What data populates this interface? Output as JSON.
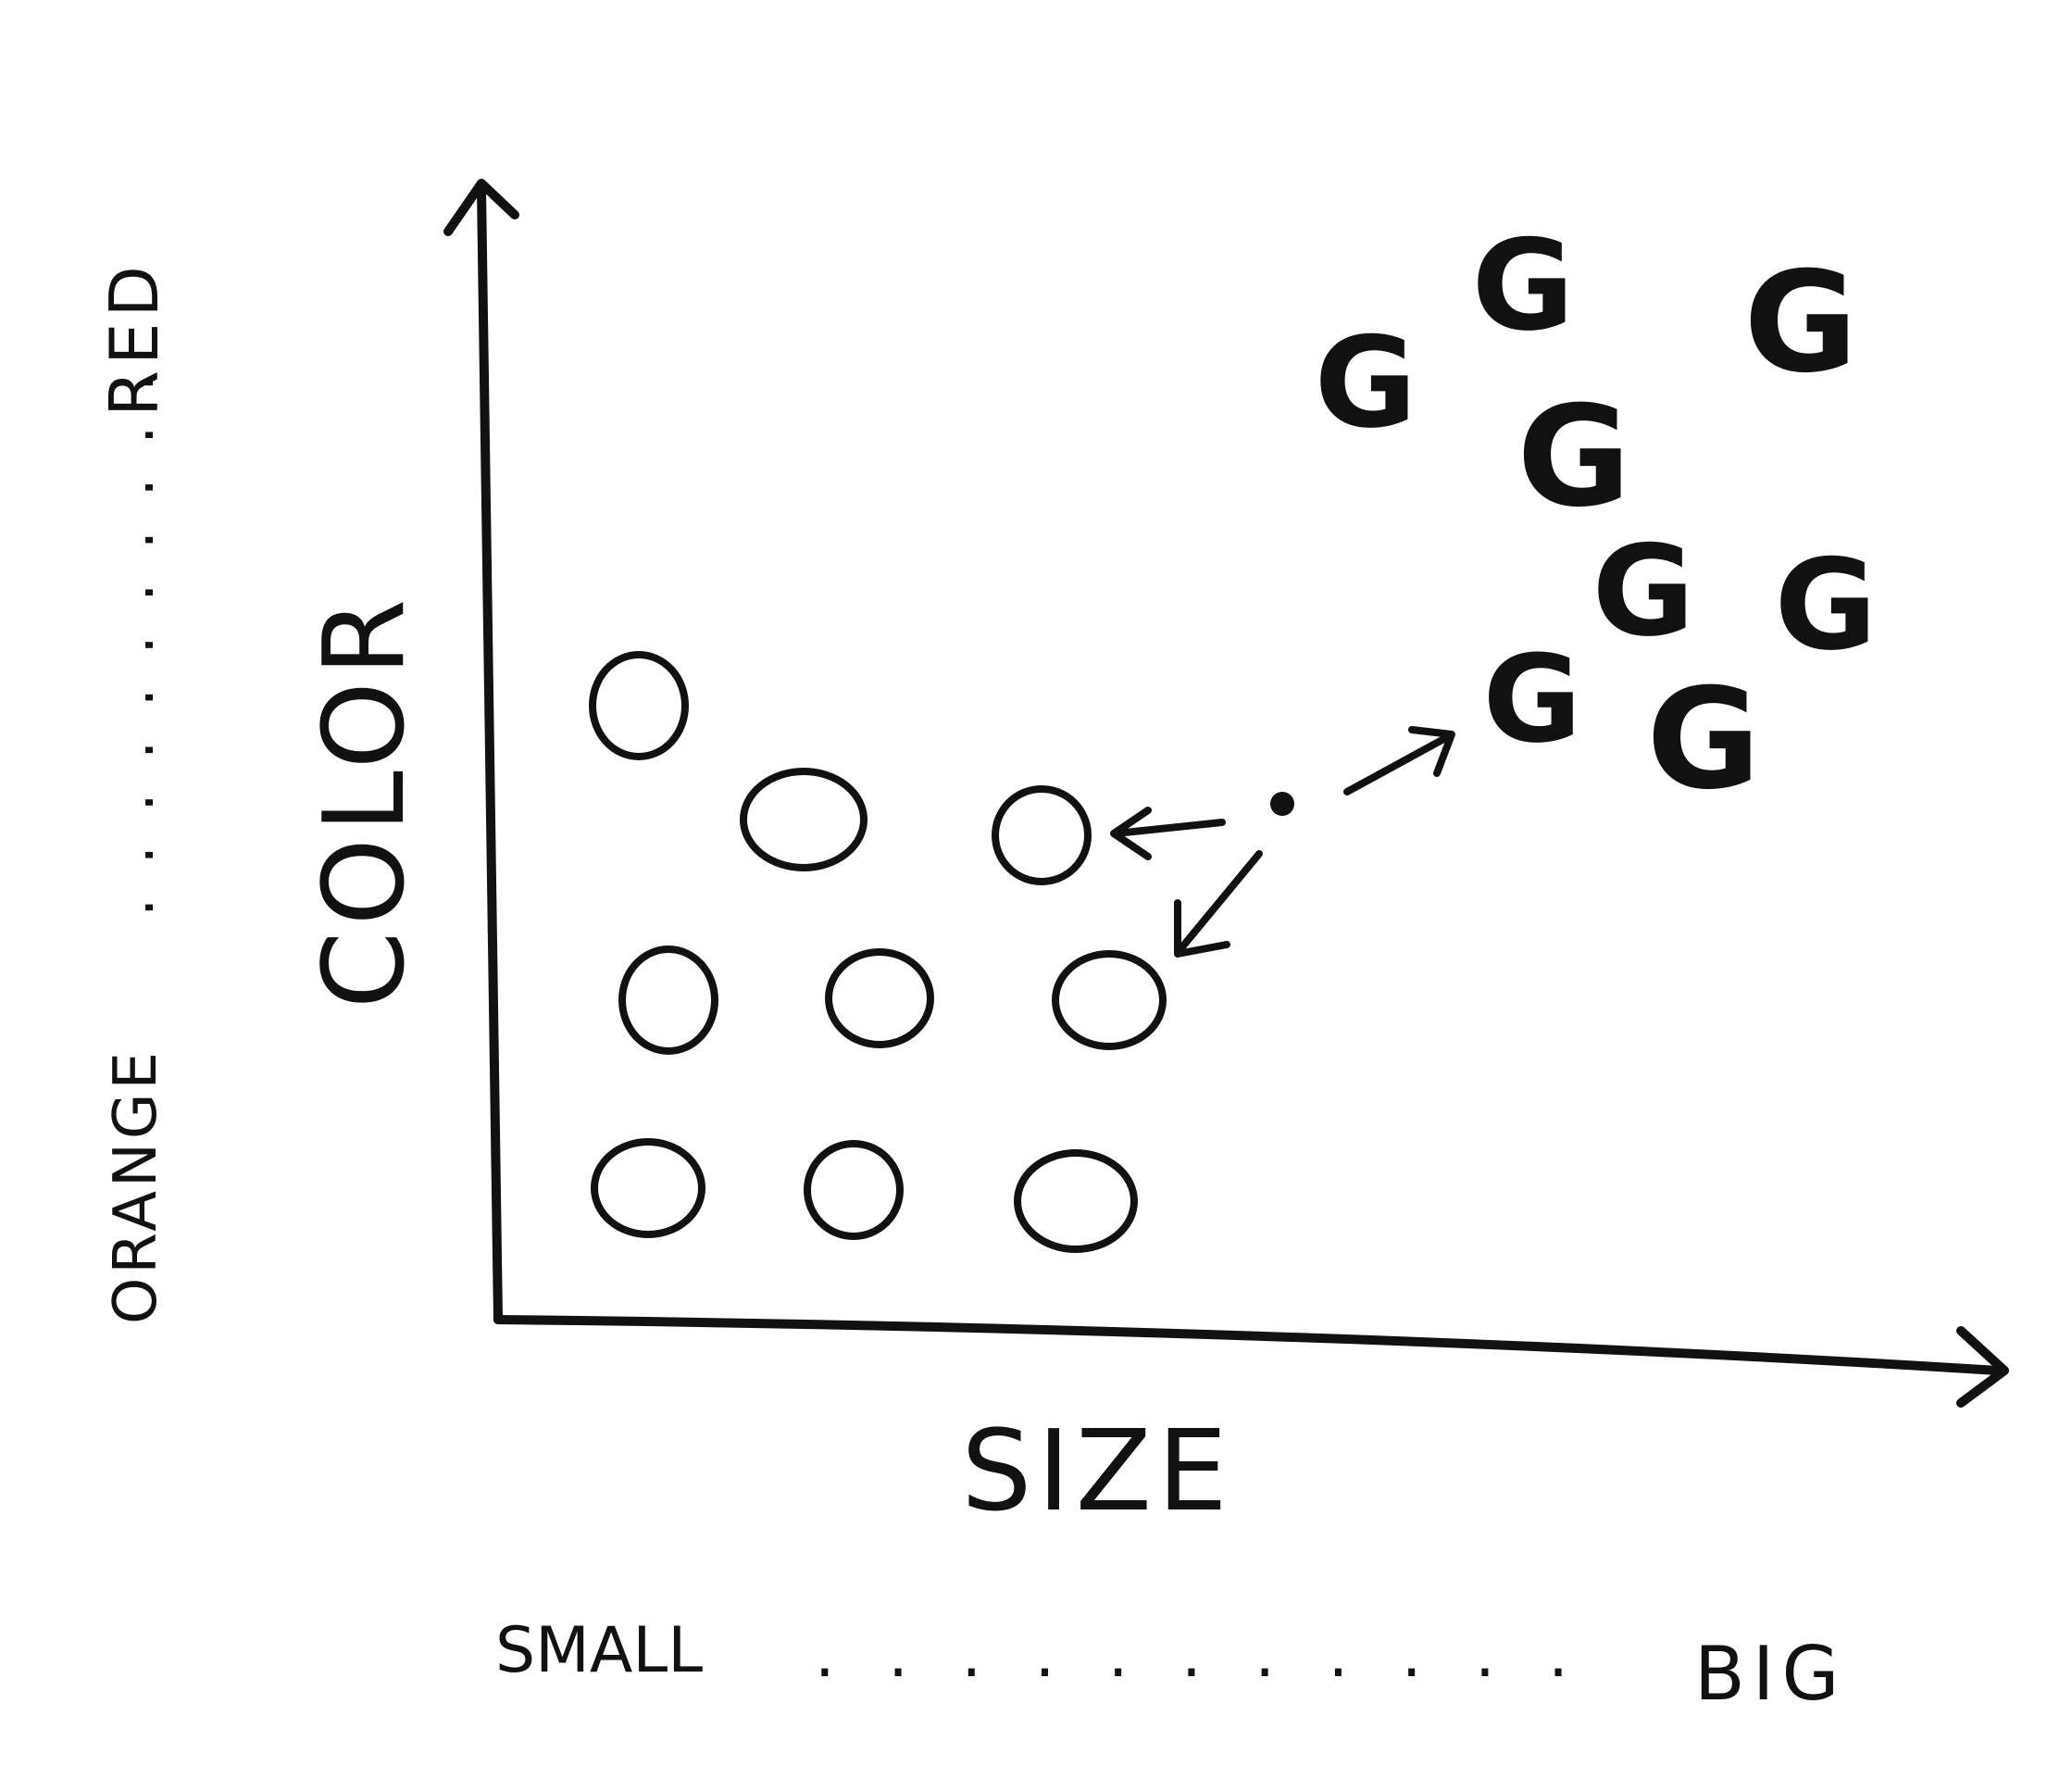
{
  "labels": {
    "x_axis": "SIZE",
    "y_axis": "COLOR",
    "x_low": "SMALL",
    "x_high": "BIG",
    "y_low": "ORANGE",
    "y_high": "RED",
    "scale_dots": ". . . . . . . . . . ."
  },
  "groups": {
    "o_symbol": "O",
    "g_symbol": "G"
  },
  "query_point": {
    "neighbors_pointed_to": 3
  },
  "colors": {
    "ink": "#111111",
    "paper": "#ffffff"
  }
}
